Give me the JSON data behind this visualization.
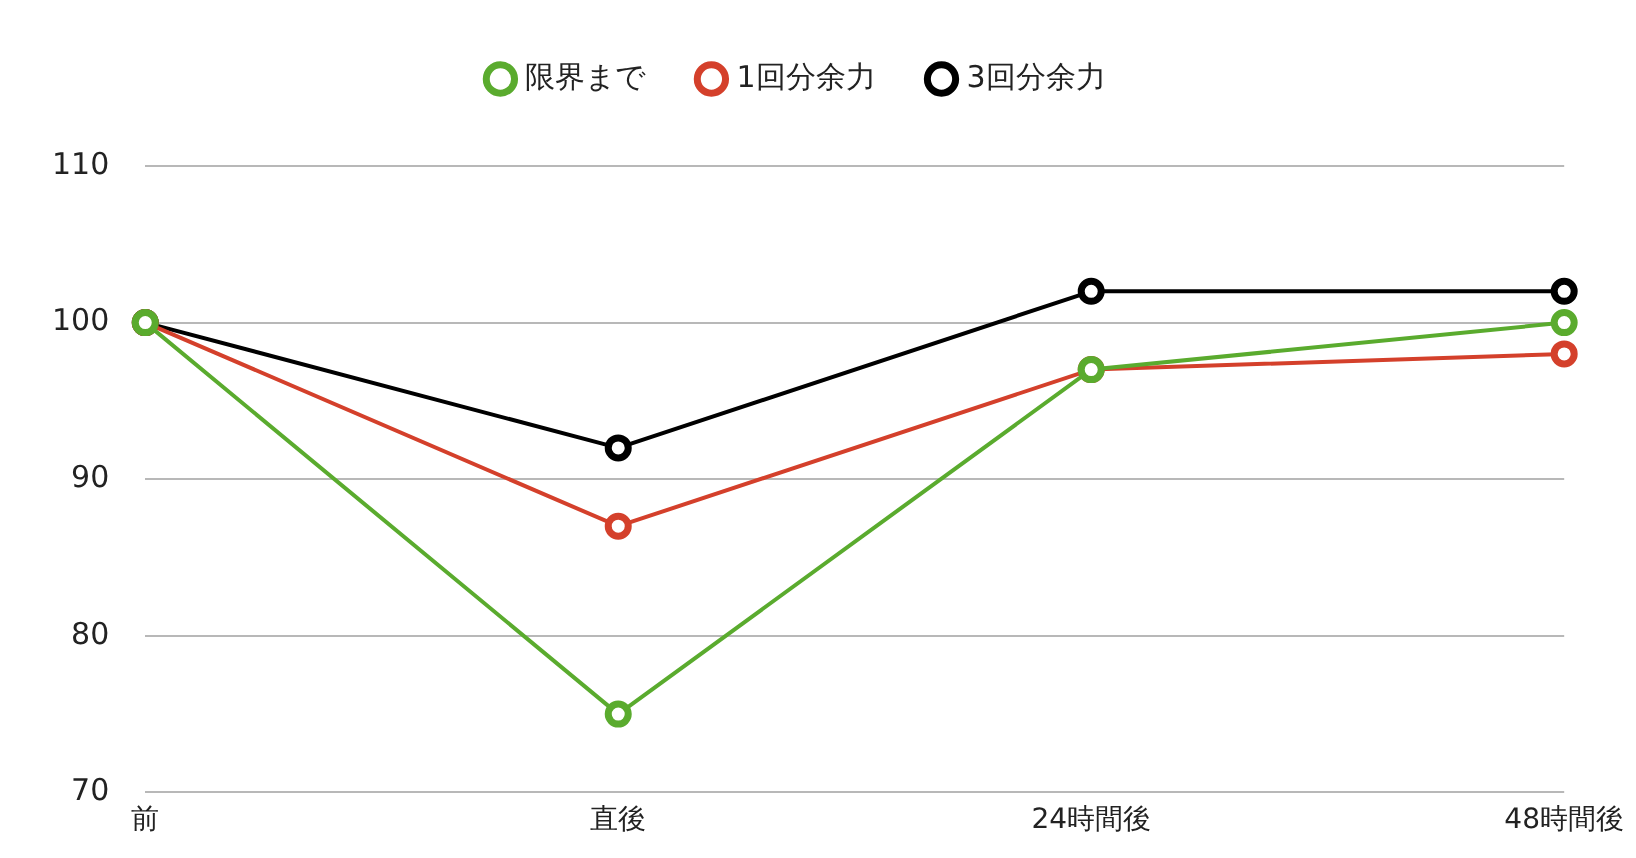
{
  "chart_data": {
    "type": "line",
    "categories": [
      "前",
      "直後",
      "24時間後",
      "48時間後"
    ],
    "series": [
      {
        "name": "限界まで",
        "color": "#5aab2e",
        "values": [
          100,
          75,
          97,
          100
        ]
      },
      {
        "name": "1回分余力",
        "color": "#d4402b",
        "values": [
          100,
          87,
          97,
          98
        ]
      },
      {
        "name": "3回分余力",
        "color": "#000000",
        "values": [
          100,
          92,
          102,
          102
        ]
      }
    ],
    "ylim": [
      70,
      110
    ],
    "yticks": [
      70,
      80,
      90,
      100,
      110
    ],
    "grid": "y",
    "legend": "top",
    "marker": "circle",
    "line_style": "solid"
  }
}
